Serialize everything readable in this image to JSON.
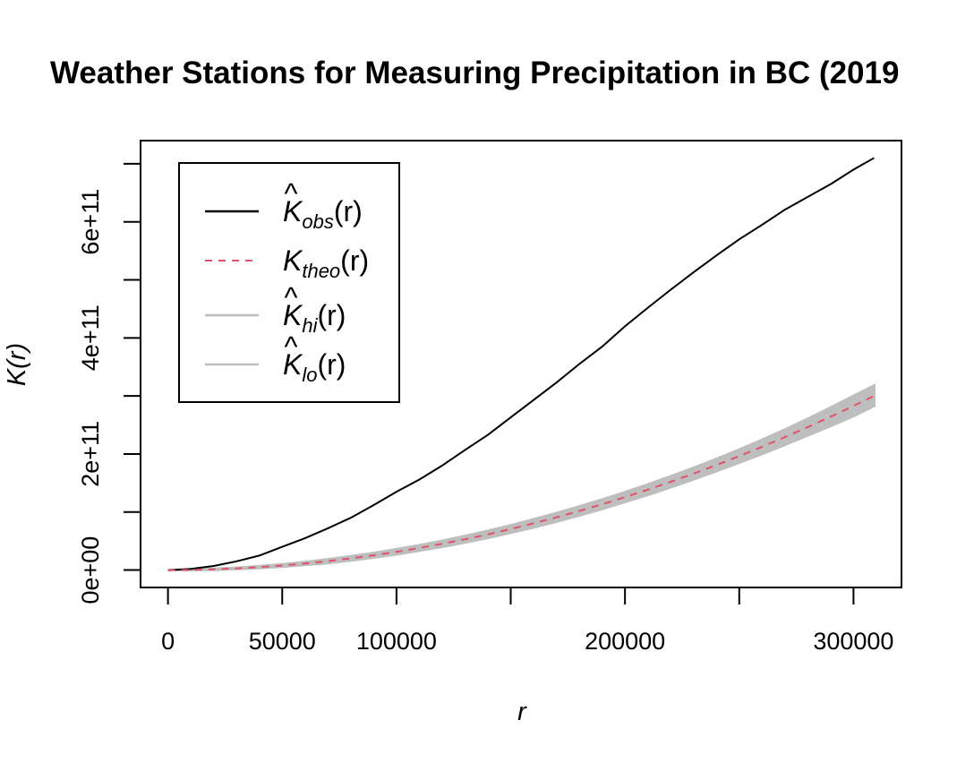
{
  "chart_data": {
    "type": "line",
    "title": "Weather Stations for Measuring Precipitation in BC (2019",
    "xlabel": "r",
    "ylabel": "K(r)",
    "xlim": [
      -12000,
      321000
    ],
    "ylim": [
      -30000000000,
      740000000000
    ],
    "x_ticks": [
      0,
      50000,
      100000,
      150000,
      200000,
      250000,
      300000
    ],
    "x_tick_labels": [
      "0",
      "50000",
      "100000",
      "",
      "200000",
      "",
      "300000"
    ],
    "y_ticks": [
      0,
      100000000000,
      200000000000,
      300000000000,
      400000000000,
      500000000000,
      600000000000,
      700000000000
    ],
    "y_tick_labels": [
      "0e+00",
      "",
      "2e+11",
      "",
      "4e+11",
      "",
      "6e+11",
      ""
    ],
    "legend_position": "top-left",
    "legend": [
      {
        "base": "K",
        "hat": true,
        "sub": "obs",
        "arg": "(r)",
        "color": "#000000",
        "style": "solid"
      },
      {
        "base": "K",
        "hat": false,
        "sub": "theo",
        "arg": "(r)",
        "color": "#DF536B",
        "style": "dashed"
      },
      {
        "base": "K",
        "hat": true,
        "sub": "hi",
        "arg": "(r)",
        "color": "#BEBEBE",
        "style": "solid"
      },
      {
        "base": "K",
        "hat": true,
        "sub": "lo",
        "arg": "(r)",
        "color": "#BEBEBE",
        "style": "solid"
      }
    ],
    "x": [
      0,
      10000,
      20000,
      30000,
      40000,
      50000,
      60000,
      70000,
      80000,
      90000,
      100000,
      110000,
      120000,
      130000,
      140000,
      150000,
      160000,
      170000,
      180000,
      190000,
      200000,
      210000,
      220000,
      230000,
      240000,
      250000,
      260000,
      270000,
      280000,
      290000,
      300000,
      309000
    ],
    "series": [
      {
        "key": "obs",
        "color": "#000000",
        "dash": "none",
        "values": [
          0,
          2000000000,
          7000000000,
          15000000000,
          25000000000,
          40000000000,
          55000000000,
          72000000000,
          90000000000,
          112000000000,
          135000000000,
          156000000000,
          180000000000,
          207000000000,
          233000000000,
          263000000000,
          293000000000,
          323000000000,
          355000000000,
          385000000000,
          420000000000,
          452000000000,
          483000000000,
          513000000000,
          542000000000,
          570000000000,
          595000000000,
          621000000000,
          643000000000,
          665000000000,
          690000000000,
          710000000000
        ]
      },
      {
        "key": "theo",
        "color": "#DF536B",
        "dash": "8,7",
        "values": [
          0,
          310000000,
          1260000000,
          2830000000,
          5030000000,
          7850000000,
          11310000000,
          15390000000,
          20110000000,
          25450000000,
          31420000000,
          38010000000,
          45240000000,
          53090000000,
          61580000000,
          70690000000,
          80420000000,
          90790000000,
          101790000000,
          113410000000,
          125660000000,
          138540000000,
          152050000000,
          166190000000,
          180960000000,
          196350000000,
          212370000000,
          229020000000,
          246300000000,
          264210000000,
          282740000000,
          300000000000
        ]
      },
      {
        "key": "hi",
        "color": "#BEBEBE",
        "dash": "none",
        "values": [
          0,
          500000000,
          1900000000,
          3800000000,
          6500000000,
          9800000000,
          13800000000,
          18500000000,
          23500000000,
          29200000000,
          35700000000,
          42500000000,
          50300000000,
          58600000000,
          67500000000,
          77000000000,
          87200000000,
          98000000000,
          109500000000,
          121500000000,
          134000000000,
          147500000000,
          161500000000,
          176000000000,
          191500000000,
          207500000000,
          224500000000,
          242000000000,
          260500000000,
          280000000000,
          300000000000,
          318000000000
        ]
      },
      {
        "key": "lo",
        "color": "#BEBEBE",
        "dash": "none",
        "values": [
          0,
          150000000,
          700000000,
          1900000000,
          3600000000,
          5900000000,
          8900000000,
          12300000000,
          16700000000,
          21700000000,
          27100000000,
          33500000000,
          40200000000,
          47600000000,
          55700000000,
          64400000000,
          73600000000,
          83600000000,
          94100000000,
          105300000000,
          117300000000,
          129600000000,
          142600000000,
          156400000000,
          170400000000,
          185200000000,
          200200000000,
          216000000000,
          232100000000,
          248400000000,
          265500000000,
          283000000000
        ]
      }
    ]
  }
}
